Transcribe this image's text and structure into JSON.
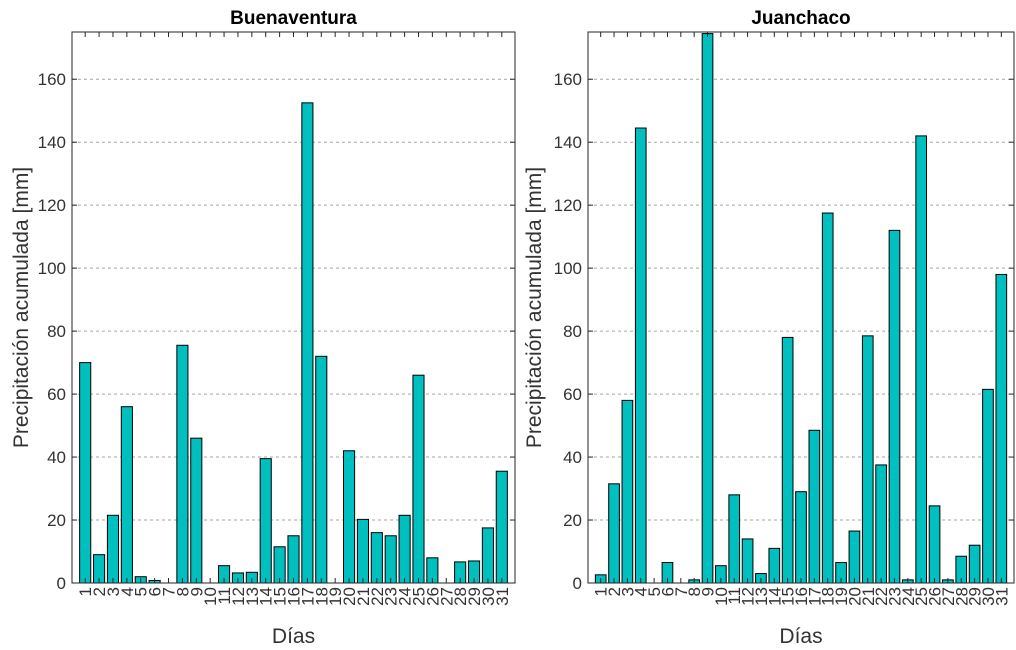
{
  "chart_data": [
    {
      "type": "bar",
      "title": "Buenaventura",
      "xlabel": "Días",
      "ylabel": "Precipitación acumulada [mm]",
      "ylim": [
        0,
        175
      ],
      "yticks": [
        0,
        20,
        40,
        60,
        80,
        100,
        120,
        140,
        160
      ],
      "grid": "y-dashed",
      "bar_color": "#00bfbf",
      "categories": [
        "1",
        "2",
        "3",
        "4",
        "5",
        "6",
        "7",
        "8",
        "9",
        "10",
        "11",
        "12",
        "13",
        "14",
        "15",
        "16",
        "17",
        "18",
        "19",
        "20",
        "21",
        "22",
        "23",
        "24",
        "25",
        "26",
        "27",
        "28",
        "29",
        "30",
        "31"
      ],
      "values": [
        70,
        9,
        21.5,
        56,
        2,
        0.8,
        0,
        75.5,
        46,
        0,
        5.5,
        3.2,
        3.4,
        39.5,
        11.5,
        15,
        152.5,
        72,
        0,
        42,
        20.2,
        16,
        15,
        21.5,
        66,
        8,
        0,
        6.7,
        7,
        17.5,
        35.5
      ]
    },
    {
      "type": "bar",
      "title": "Juanchaco",
      "xlabel": "Días",
      "ylabel": "Precipitación acumulada [mm]",
      "ylim": [
        0,
        175
      ],
      "yticks": [
        0,
        20,
        40,
        60,
        80,
        100,
        120,
        140,
        160
      ],
      "grid": "y-dashed",
      "bar_color": "#00bfbf",
      "categories": [
        "1",
        "2",
        "3",
        "4",
        "5",
        "6",
        "7",
        "8",
        "9",
        "10",
        "11",
        "12",
        "13",
        "14",
        "15",
        "16",
        "17",
        "18",
        "19",
        "20",
        "21",
        "22",
        "23",
        "24",
        "25",
        "26",
        "27",
        "28",
        "29",
        "30",
        "31"
      ],
      "values": [
        2.6,
        31.5,
        58,
        144.5,
        0,
        6.5,
        0,
        1,
        174.5,
        5.5,
        28,
        14,
        3,
        11,
        78,
        29,
        48.5,
        117.5,
        6.5,
        16.5,
        78.5,
        37.5,
        112,
        1,
        142,
        24.5,
        1,
        8.5,
        12,
        61.5,
        98
      ]
    }
  ]
}
